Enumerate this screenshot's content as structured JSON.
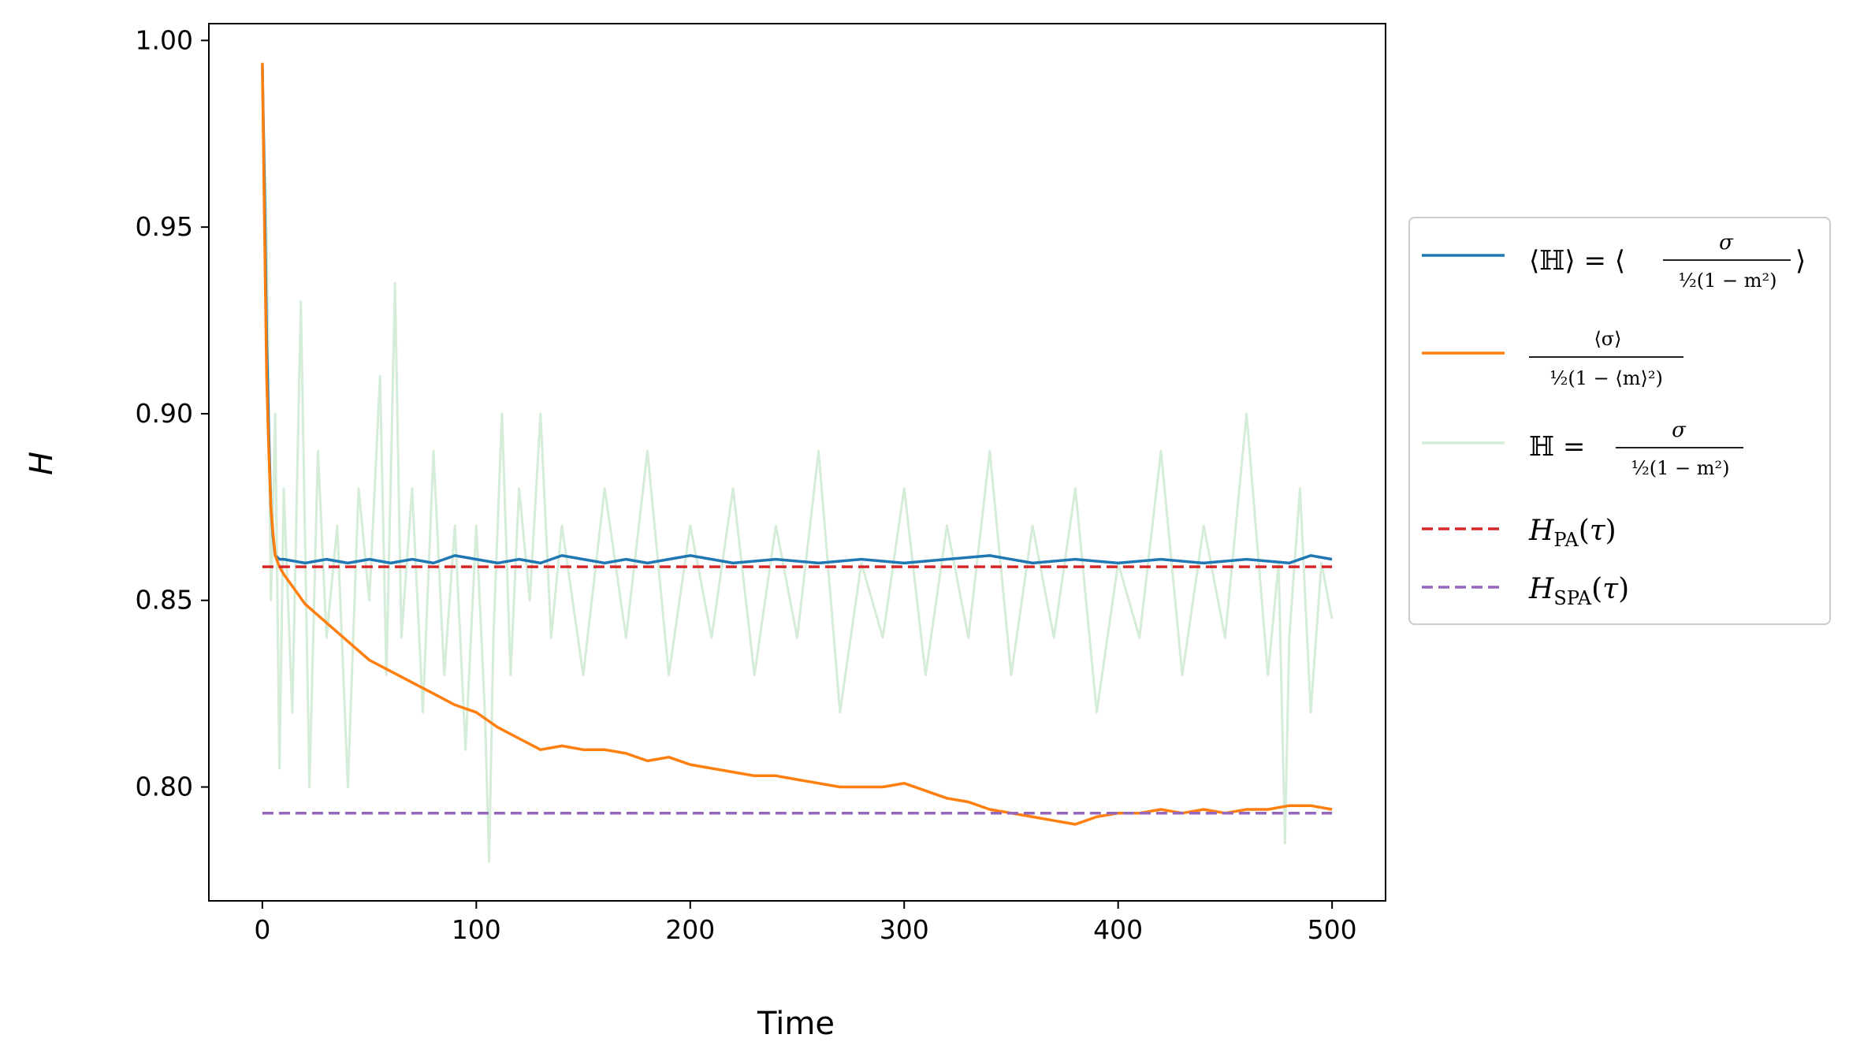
{
  "chart_data": {
    "type": "line",
    "xlabel": "Time",
    "ylabel": "H",
    "xlim": [
      -25,
      525
    ],
    "ylim": [
      0.7695,
      1.0045
    ],
    "xticks": [
      "0",
      "100",
      "200",
      "300",
      "400",
      "500"
    ],
    "xtick_values": [
      0,
      100,
      200,
      300,
      400,
      500
    ],
    "yticks": [
      "0.80",
      "0.85",
      "0.90",
      "0.95",
      "1.00"
    ],
    "ytick_values": [
      0.8,
      0.85,
      0.9,
      0.95,
      1.0
    ],
    "grid": false,
    "legend_placement": "outside-right",
    "legend": [
      {
        "label": "⟨ℍ⟩ = ⟨ σ / ½(1 − m²) ⟩",
        "color": "#1f77b4",
        "style": "solid"
      },
      {
        "label": "⟨σ⟩ / ½(1 − ⟨m⟩²)",
        "color": "#ff7f0e",
        "style": "solid"
      },
      {
        "label": "ℍ = σ / ½(1 − m²)",
        "color": "#d4ecd8",
        "style": "solid"
      },
      {
        "label": "H_PA(τ)",
        "color": "#d62728",
        "style": "dashed"
      },
      {
        "label": "H_SPA(τ)",
        "color": "#9467bd",
        "style": "dashed"
      }
    ],
    "series": [
      {
        "id": "H_raw",
        "color": "#d4ecd8",
        "x": [
          0,
          2,
          4,
          6,
          8,
          10,
          14,
          18,
          22,
          26,
          30,
          35,
          40,
          45,
          50,
          55,
          58,
          62,
          65,
          70,
          75,
          80,
          85,
          90,
          95,
          100,
          104,
          106,
          108,
          112,
          116,
          120,
          125,
          130,
          135,
          140,
          150,
          160,
          170,
          180,
          190,
          200,
          210,
          220,
          230,
          240,
          250,
          260,
          270,
          280,
          290,
          300,
          310,
          320,
          330,
          340,
          350,
          360,
          370,
          380,
          390,
          400,
          410,
          420,
          430,
          440,
          450,
          460,
          470,
          475,
          478,
          480,
          485,
          490,
          495,
          500
        ],
        "y": [
          0.99,
          0.95,
          0.85,
          0.9,
          0.805,
          0.88,
          0.82,
          0.93,
          0.8,
          0.89,
          0.84,
          0.87,
          0.8,
          0.88,
          0.85,
          0.91,
          0.83,
          0.935,
          0.84,
          0.88,
          0.82,
          0.89,
          0.83,
          0.87,
          0.81,
          0.87,
          0.82,
          0.78,
          0.84,
          0.9,
          0.83,
          0.88,
          0.85,
          0.9,
          0.84,
          0.87,
          0.83,
          0.88,
          0.84,
          0.89,
          0.83,
          0.87,
          0.84,
          0.88,
          0.83,
          0.87,
          0.84,
          0.89,
          0.82,
          0.86,
          0.84,
          0.88,
          0.83,
          0.87,
          0.84,
          0.89,
          0.83,
          0.87,
          0.84,
          0.88,
          0.82,
          0.86,
          0.84,
          0.89,
          0.83,
          0.87,
          0.84,
          0.9,
          0.83,
          0.86,
          0.785,
          0.84,
          0.88,
          0.82,
          0.86,
          0.845
        ]
      },
      {
        "id": "H_avg",
        "color": "#1f77b4",
        "x": [
          0,
          1,
          2,
          3,
          4,
          5,
          6,
          8,
          10,
          20,
          30,
          40,
          50,
          60,
          70,
          80,
          90,
          100,
          110,
          120,
          130,
          140,
          150,
          160,
          170,
          180,
          190,
          200,
          220,
          240,
          260,
          280,
          300,
          320,
          340,
          360,
          380,
          400,
          420,
          440,
          460,
          480,
          490,
          500
        ],
        "y": [
          0.993,
          0.96,
          0.92,
          0.895,
          0.875,
          0.867,
          0.862,
          0.861,
          0.861,
          0.86,
          0.861,
          0.86,
          0.861,
          0.86,
          0.861,
          0.86,
          0.862,
          0.861,
          0.86,
          0.861,
          0.86,
          0.862,
          0.861,
          0.86,
          0.861,
          0.86,
          0.861,
          0.862,
          0.86,
          0.861,
          0.86,
          0.861,
          0.86,
          0.861,
          0.862,
          0.86,
          0.861,
          0.86,
          0.861,
          0.86,
          0.861,
          0.86,
          0.862,
          0.861
        ]
      },
      {
        "id": "H_ratio",
        "color": "#ff7f0e",
        "x": [
          0,
          1,
          2,
          3,
          4,
          5,
          6,
          8,
          10,
          15,
          20,
          30,
          40,
          50,
          60,
          70,
          80,
          90,
          100,
          110,
          120,
          130,
          140,
          150,
          160,
          170,
          180,
          190,
          200,
          210,
          220,
          230,
          240,
          250,
          260,
          270,
          280,
          290,
          300,
          310,
          320,
          330,
          340,
          350,
          360,
          370,
          380,
          390,
          400,
          410,
          420,
          430,
          440,
          450,
          460,
          470,
          480,
          490,
          500
        ],
        "y": [
          0.994,
          0.95,
          0.91,
          0.89,
          0.875,
          0.868,
          0.862,
          0.859,
          0.857,
          0.853,
          0.849,
          0.844,
          0.839,
          0.834,
          0.831,
          0.828,
          0.825,
          0.822,
          0.82,
          0.816,
          0.813,
          0.81,
          0.811,
          0.81,
          0.81,
          0.809,
          0.807,
          0.808,
          0.806,
          0.805,
          0.804,
          0.803,
          0.803,
          0.802,
          0.801,
          0.8,
          0.8,
          0.8,
          0.801,
          0.799,
          0.797,
          0.796,
          0.794,
          0.793,
          0.792,
          0.791,
          0.79,
          0.792,
          0.793,
          0.793,
          0.794,
          0.793,
          0.794,
          0.793,
          0.794,
          0.794,
          0.795,
          0.795,
          0.794
        ]
      },
      {
        "id": "H_PA",
        "color": "#d62728",
        "dashed": true,
        "x": [
          0,
          500
        ],
        "y": [
          0.859,
          0.859
        ]
      },
      {
        "id": "H_SPA",
        "color": "#9467bd",
        "dashed": true,
        "x": [
          0,
          500
        ],
        "y": [
          0.793,
          0.793
        ]
      }
    ]
  }
}
